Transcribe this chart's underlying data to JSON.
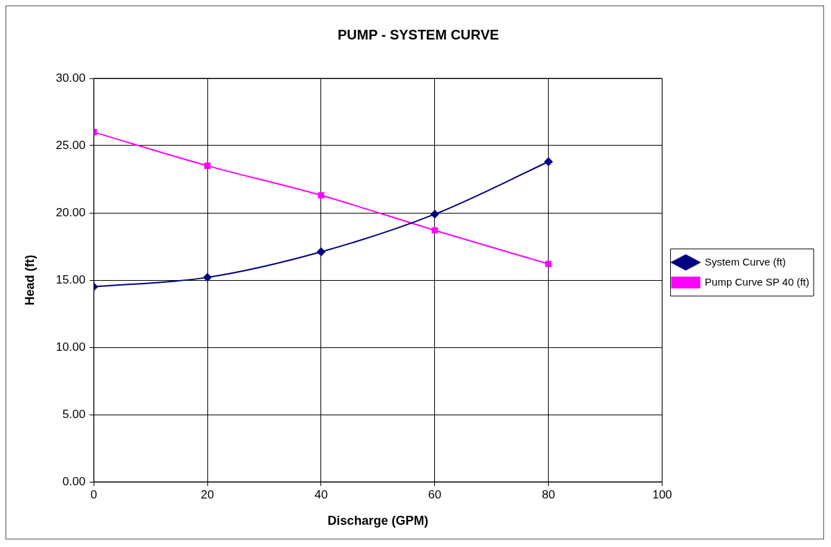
{
  "chart_data": {
    "type": "line",
    "title": "PUMP - SYSTEM CURVE",
    "xlabel": "Discharge (GPM)",
    "ylabel": "Head (ft)",
    "x": [
      0,
      20,
      40,
      60,
      80
    ],
    "series": [
      {
        "name": "System Curve (ft)",
        "color": "#000080",
        "marker": "diamond",
        "values": [
          14.5,
          15.2,
          17.1,
          19.9,
          23.8
        ]
      },
      {
        "name": "Pump Curve SP 40 (ft)",
        "color": "#ff00ff",
        "marker": "square",
        "values": [
          26.0,
          23.5,
          21.3,
          18.7,
          16.2
        ]
      }
    ],
    "xlim": [
      0,
      100
    ],
    "xticks": [
      0,
      20,
      40,
      60,
      80,
      100
    ],
    "ylim": [
      0,
      30
    ],
    "yticks": [
      {
        "value": 0,
        "label": "0.00"
      },
      {
        "value": 5,
        "label": "5.00"
      },
      {
        "value": 10,
        "label": "10.00"
      },
      {
        "value": 15,
        "label": "15.00"
      },
      {
        "value": 20,
        "label": "20.00"
      },
      {
        "value": 25,
        "label": "25.00"
      },
      {
        "value": 30,
        "label": "30.00"
      }
    ],
    "grid": true,
    "legend": "right"
  }
}
